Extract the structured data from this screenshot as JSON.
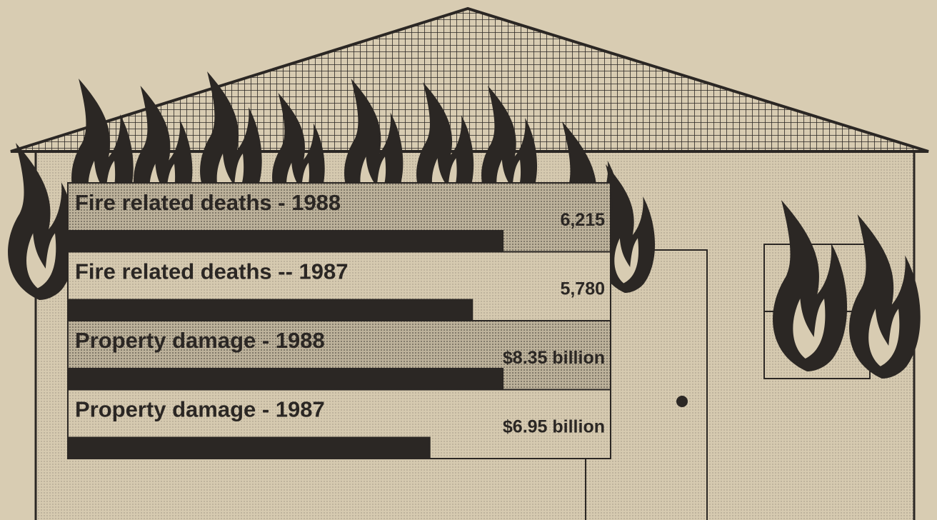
{
  "chart_data": [
    {
      "type": "bar",
      "orientation": "horizontal",
      "categories": [
        "Fire related deaths - 1988",
        "Fire related deaths -- 1987"
      ],
      "values": [
        6215,
        5780
      ],
      "value_labels": [
        "6,215",
        "5,780"
      ],
      "color": "#2b2724"
    },
    {
      "type": "bar",
      "orientation": "horizontal",
      "categories": [
        "Property damage - 1988",
        "Property damage - 1987"
      ],
      "values": [
        8.35,
        6.95
      ],
      "value_labels": [
        "$8.35 billion",
        "$6.95 billion"
      ],
      "color": "#2b2724"
    }
  ]
}
